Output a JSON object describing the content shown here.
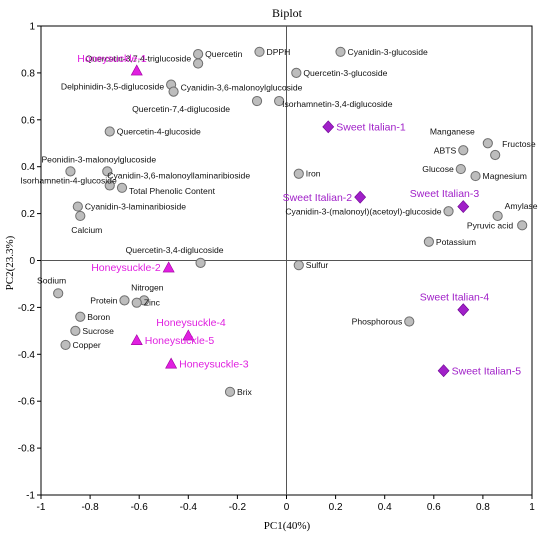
{
  "chart_data": {
    "type": "scatter",
    "title": "Biplot",
    "xlabel": "PC1(40%)",
    "ylabel": "PC2(23.3%)",
    "xlim": [
      -1,
      1
    ],
    "ylim": [
      -1,
      1
    ],
    "xticks": [
      -1,
      -0.8,
      -0.6,
      -0.4,
      -0.2,
      0,
      0.2,
      0.4,
      0.6,
      0.8,
      1
    ],
    "yticks": [
      -1,
      -0.8,
      -0.6,
      -0.4,
      -0.2,
      0,
      0.2,
      0.4,
      0.6,
      0.8,
      1
    ],
    "colors": {
      "variable_fill": "#bdbdbd",
      "variable_stroke": "#6e6e6e",
      "honeysuckle": "#e020e0",
      "sweet_italian": "#a020c8"
    },
    "variables": [
      {
        "label": "Quercetin",
        "x": -0.36,
        "y": 0.88
      },
      {
        "label": "DPPH",
        "x": -0.11,
        "y": 0.89
      },
      {
        "label": "Cyanidin-3-glucoside",
        "x": 0.22,
        "y": 0.89
      },
      {
        "label": "Quercetin-3,7,4-triglucoside",
        "x": -0.36,
        "y": 0.84
      },
      {
        "label": "Quercetin-3-glucoside",
        "x": 0.04,
        "y": 0.8
      },
      {
        "label": "Delphinidin-3,5-diglucoside",
        "x": -0.47,
        "y": 0.75
      },
      {
        "label": "Cyanidin-3,6-malonoylglucoside",
        "x": -0.46,
        "y": 0.72
      },
      {
        "label": "Isorhamnetin-3,4-diglucoside",
        "x": -0.03,
        "y": 0.68
      },
      {
        "label": "Quercetin-7,4-diglucoside",
        "x": -0.12,
        "y": 0.68
      },
      {
        "label": "Quercetin-4-glucoside",
        "x": -0.72,
        "y": 0.55
      },
      {
        "label": "Peonidin-3-malonoylglucoside",
        "x": -0.88,
        "y": 0.38
      },
      {
        "label": "Cyanidin-3,6-malonoyllaminaribioside",
        "x": -0.73,
        "y": 0.38
      },
      {
        "label": "Isorhamnetin-4-glucoside",
        "x": -0.72,
        "y": 0.32
      },
      {
        "label": "Total Phenolic Content",
        "x": -0.67,
        "y": 0.31
      },
      {
        "label": "Cyanidin-3-laminaribioside",
        "x": -0.85,
        "y": 0.23
      },
      {
        "label": "Calcium",
        "x": -0.84,
        "y": 0.19
      },
      {
        "label": "Quercetin-3,4-diglucoside",
        "x": -0.35,
        "y": -0.01
      },
      {
        "label": "Iron",
        "x": 0.05,
        "y": 0.37
      },
      {
        "label": "Sulfur",
        "x": 0.05,
        "y": -0.02
      },
      {
        "label": "Sodium",
        "x": -0.93,
        "y": -0.14
      },
      {
        "label": "Nitrogen",
        "x": -0.58,
        "y": -0.17
      },
      {
        "label": "Protein",
        "x": -0.66,
        "y": -0.17
      },
      {
        "label": "Zinc",
        "x": -0.61,
        "y": -0.18
      },
      {
        "label": "Boron",
        "x": -0.84,
        "y": -0.24
      },
      {
        "label": "Sucrose",
        "x": -0.86,
        "y": -0.3
      },
      {
        "label": "Copper",
        "x": -0.9,
        "y": -0.36
      },
      {
        "label": "Brix",
        "x": -0.23,
        "y": -0.56
      },
      {
        "label": "Phosphorous",
        "x": 0.5,
        "y": -0.26
      },
      {
        "label": "Manganese",
        "x": 0.82,
        "y": 0.5
      },
      {
        "label": "ABTS",
        "x": 0.72,
        "y": 0.47
      },
      {
        "label": "Fructose",
        "x": 0.85,
        "y": 0.45
      },
      {
        "label": "Glucose",
        "x": 0.71,
        "y": 0.39
      },
      {
        "label": "Magnesium",
        "x": 0.77,
        "y": 0.36
      },
      {
        "label": "Amylase",
        "x": 0.86,
        "y": 0.19
      },
      {
        "label": "Pyruvic acid",
        "x": 0.96,
        "y": 0.15
      },
      {
        "label": "Cyanidin-3-(malonoyl)(acetoyl)-glucoside",
        "x": 0.66,
        "y": 0.21
      },
      {
        "label": "Potassium",
        "x": 0.58,
        "y": 0.08
      }
    ],
    "series": [
      {
        "name": "Honeysuckle",
        "marker": "triangle",
        "points": [
          {
            "label": "Honeysuckle-1",
            "x": -0.61,
            "y": 0.81
          },
          {
            "label": "Honeysuckle-2",
            "x": -0.48,
            "y": -0.03
          },
          {
            "label": "Honeysuckle-4",
            "x": -0.4,
            "y": -0.32
          },
          {
            "label": "Honeysuckle-5",
            "x": -0.61,
            "y": -0.34
          },
          {
            "label": "Honeysuckle-3",
            "x": -0.47,
            "y": -0.44
          }
        ]
      },
      {
        "name": "Sweet Italian",
        "marker": "diamond",
        "points": [
          {
            "label": "Sweet Italian-1",
            "x": 0.17,
            "y": 0.57
          },
          {
            "label": "Sweet Italian-2",
            "x": 0.3,
            "y": 0.27
          },
          {
            "label": "Sweet Italian-3",
            "x": 0.72,
            "y": 0.23
          },
          {
            "label": "Sweet Italian-4",
            "x": 0.72,
            "y": -0.21
          },
          {
            "label": "Sweet Italian-5",
            "x": 0.64,
            "y": -0.47
          }
        ]
      }
    ]
  }
}
